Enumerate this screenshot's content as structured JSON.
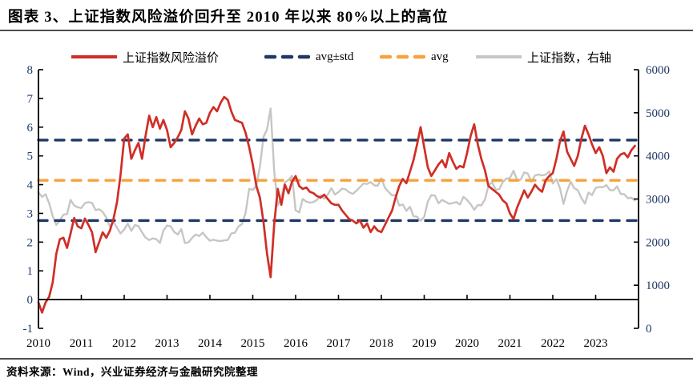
{
  "title": "图表 3、上证指数风险溢价回升至 2010 年以来 80%以上的高位",
  "source_note": "资料来源：Wind，兴业证券经济与金融研究院整理",
  "colors": {
    "risk_premium_red": "#d02e26",
    "band_navy": "#1f3864",
    "avg_orange": "#f7a23c",
    "index_gray": "#c7c6c4",
    "axis_black": "#000000",
    "y_tick_label": "#1f3864",
    "divider_gray": "#4f4f4f"
  },
  "legend": [
    {
      "label": "上证指数风险溢价",
      "color": "#d02e26",
      "style": "solid"
    },
    {
      "label": "avg±std",
      "color": "#1f3864",
      "style": "dashed"
    },
    {
      "label": "avg",
      "color": "#f7a23c",
      "style": "dashed"
    },
    {
      "label": "上证指数，右轴",
      "color": "#c7c6c4",
      "style": "solid"
    }
  ],
  "chart_data": {
    "type": "line",
    "title": "上证指数风险溢价回升至 2010 年以来 80%以上的高位",
    "x_axis": {
      "range": [
        2010,
        2024
      ],
      "ticks": [
        2010,
        2011,
        2012,
        2013,
        2014,
        2015,
        2016,
        2017,
        2018,
        2019,
        2020,
        2021,
        2022,
        2023
      ]
    },
    "y_left": {
      "range": [
        -1,
        8
      ],
      "ticks": [
        -1,
        0,
        1,
        2,
        3,
        4,
        5,
        6,
        7,
        8
      ]
    },
    "y_right": {
      "range": [
        0,
        6000
      ],
      "ticks": [
        0,
        1000,
        2000,
        3000,
        4000,
        5000,
        6000
      ]
    },
    "reference_lines": [
      {
        "name": "avg+std",
        "axis": "left",
        "value": 5.55,
        "color": "#1f3864",
        "style": "dashed"
      },
      {
        "name": "avg",
        "axis": "left",
        "value": 4.15,
        "color": "#f7a23c",
        "style": "dashed"
      },
      {
        "name": "avg-std",
        "axis": "left",
        "value": 2.75,
        "color": "#1f3864",
        "style": "dashed"
      }
    ],
    "series": [
      {
        "name": "上证指数风险溢价",
        "axis": "left",
        "color": "#d02e26",
        "style": "solid",
        "x_start": 2010.0,
        "x_step": 0.0833333,
        "values": [
          -0.1,
          -0.45,
          -0.1,
          0.1,
          0.6,
          1.6,
          2.1,
          2.15,
          1.8,
          2.3,
          2.84,
          2.55,
          2.48,
          2.82,
          2.6,
          2.34,
          1.65,
          2.0,
          2.34,
          2.15,
          2.4,
          2.8,
          3.4,
          4.35,
          5.6,
          5.75,
          4.9,
          5.2,
          5.45,
          4.9,
          5.7,
          6.4,
          6.0,
          6.35,
          5.95,
          6.25,
          5.9,
          5.3,
          5.45,
          5.65,
          5.9,
          6.55,
          6.3,
          5.75,
          6.05,
          6.3,
          6.1,
          6.15,
          6.5,
          6.7,
          6.55,
          6.85,
          7.05,
          6.95,
          6.55,
          6.25,
          6.2,
          6.15,
          5.8,
          5.3,
          4.7,
          3.95,
          3.55,
          2.7,
          1.6,
          0.78,
          2.6,
          3.85,
          3.3,
          4.0,
          3.7,
          4.1,
          4.3,
          3.95,
          3.85,
          3.9,
          3.75,
          3.7,
          3.6,
          3.55,
          3.65,
          3.5,
          3.35,
          3.3,
          3.3,
          3.1,
          2.95,
          2.8,
          2.75,
          2.65,
          2.75,
          2.5,
          2.65,
          2.35,
          2.55,
          2.4,
          2.35,
          2.6,
          2.85,
          3.1,
          3.55,
          3.95,
          4.2,
          4.05,
          4.45,
          4.85,
          5.4,
          6.0,
          5.3,
          4.6,
          4.3,
          4.5,
          4.7,
          4.85,
          4.6,
          5.1,
          4.8,
          4.55,
          4.65,
          4.6,
          5.1,
          5.7,
          6.1,
          5.4,
          4.9,
          4.5,
          3.95,
          3.85,
          3.75,
          3.65,
          3.45,
          3.35,
          3.0,
          2.8,
          3.2,
          3.5,
          3.8,
          3.55,
          3.75,
          4.0,
          3.85,
          3.75,
          4.15,
          4.3,
          4.4,
          4.9,
          5.5,
          5.85,
          5.15,
          4.9,
          4.65,
          5.0,
          5.6,
          6.05,
          5.75,
          5.4,
          5.1,
          5.3,
          5.0,
          4.4,
          4.6,
          4.45,
          4.9,
          5.05,
          5.1,
          4.95,
          5.2,
          5.35
        ]
      },
      {
        "name": "上证指数，右轴",
        "axis": "right",
        "color": "#c7c6c4",
        "style": "solid",
        "x_start": 2010.0,
        "x_step": 0.0833333,
        "values": [
          3150,
          3050,
          3109,
          2900,
          2600,
          2400,
          2500,
          2640,
          2650,
          2980,
          2850,
          2808,
          2790,
          2905,
          2928,
          2911,
          2743,
          2762,
          2701,
          2567,
          2359,
          2468,
          2333,
          2199,
          2293,
          2428,
          2263,
          2396,
          2372,
          2225,
          2103,
          2047,
          2086,
          2068,
          1980,
          2269,
          2385,
          2366,
          2237,
          2177,
          2301,
          1979,
          1994,
          2098,
          2175,
          2141,
          2220,
          2116,
          2033,
          2056,
          2033,
          2026,
          2039,
          2048,
          2201,
          2217,
          2364,
          2420,
          2683,
          3235,
          3210,
          3310,
          3748,
          4442,
          4612,
          5100,
          3664,
          2850,
          3053,
          3383,
          3445,
          3539,
          2738,
          2688,
          3004,
          2938,
          2917,
          2930,
          2979,
          3085,
          3005,
          3100,
          3250,
          3104,
          3159,
          3242,
          3223,
          3155,
          3117,
          3192,
          3273,
          3361,
          3349,
          3393,
          3317,
          3307,
          3481,
          3259,
          3169,
          3082,
          3095,
          2847,
          2876,
          2725,
          2821,
          2603,
          2588,
          2494,
          2585,
          2941,
          3091,
          3078,
          2899,
          2979,
          2933,
          2886,
          2905,
          2929,
          2872,
          3050,
          2977,
          2880,
          2750,
          2860,
          2852,
          2985,
          3310,
          3396,
          3218,
          3225,
          3392,
          3473,
          3483,
          3655,
          3442,
          3447,
          3615,
          3591,
          3397,
          3544,
          3568,
          3547,
          3564,
          3640,
          3361,
          3462,
          3252,
          2886,
          3186,
          3399,
          3253,
          3202,
          3024,
          2893,
          3151,
          3089,
          3256,
          3280,
          3273,
          3323,
          3205,
          3202,
          3291,
          3120,
          3110,
          3019,
          3030,
          2970
        ]
      }
    ]
  }
}
